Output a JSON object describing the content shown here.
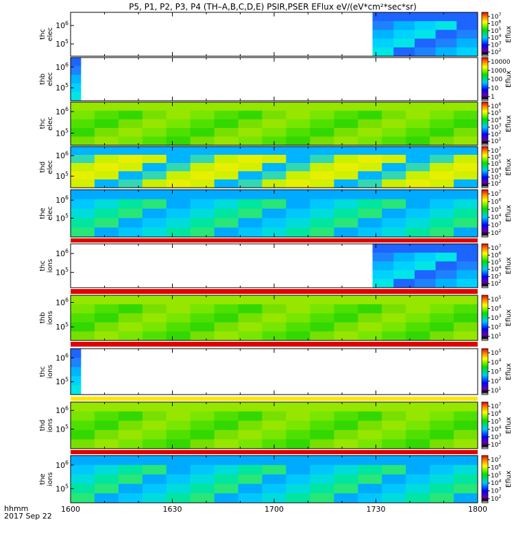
{
  "title": "P5, P1, P2, P3, P4 (TH–A,B,C,D,E) PSIR,PSER EFlux eV/(eV*cm²*sec*sr)",
  "x_axis": {
    "ticks": [
      "1600",
      "1630",
      "1700",
      "1730",
      "1800"
    ],
    "tick_minutes": [
      0,
      30,
      60,
      90,
      120
    ],
    "format_label": "hhmm",
    "date_label": "2017 Sep 22"
  },
  "colorbar_label": "Eflux",
  "chart_data": [
    {
      "type": "heatmap",
      "probe": "thc",
      "species": "elec",
      "ylabel_top": "thc",
      "ylabel_bottom": "elec",
      "y_ticks": [
        {
          "mant": "10",
          "exp": "6",
          "pos": 0.3
        },
        {
          "mant": "10",
          "exp": "5",
          "pos": 0.72
        }
      ],
      "colorbar_ticks": [
        {
          "mant": "10",
          "exp": "7"
        },
        {
          "mant": "10",
          "exp": "6"
        },
        {
          "mant": "10",
          "exp": "5"
        },
        {
          "mant": "10",
          "exp": "4"
        },
        {
          "mant": "10",
          "exp": "3"
        },
        {
          "mant": "10",
          "exp": "2"
        }
      ],
      "data_start_minute": 89,
      "data_end_minute": 120,
      "colormap": "blue-cyan"
    },
    {
      "type": "heatmap",
      "probe": "thb",
      "species": "elec",
      "ylabel_top": "thb",
      "ylabel_bottom": "elec",
      "y_ticks": [
        {
          "mant": "10",
          "exp": "6",
          "pos": 0.22
        },
        {
          "mant": "10",
          "exp": "5",
          "pos": 0.7
        }
      ],
      "colorbar_ticks": [
        {
          "mant": "10000",
          "exp": ""
        },
        {
          "mant": "1000",
          "exp": ""
        },
        {
          "mant": "100",
          "exp": ""
        },
        {
          "mant": "10",
          "exp": ""
        },
        {
          "mant": "1",
          "exp": ""
        }
      ],
      "data_start_minute": 0,
      "data_end_minute": 3,
      "colormap": "blue-cyan"
    },
    {
      "type": "heatmap",
      "probe": "thc",
      "species": "elec",
      "ylabel_top": "thc",
      "ylabel_bottom": "elec",
      "y_ticks": [
        {
          "mant": "10",
          "exp": "6",
          "pos": 0.22
        },
        {
          "mant": "10",
          "exp": "5",
          "pos": 0.72
        }
      ],
      "colorbar_ticks": [
        {
          "mant": "10",
          "exp": "6"
        },
        {
          "mant": "10",
          "exp": "5"
        },
        {
          "mant": "10",
          "exp": "4"
        },
        {
          "mant": "10",
          "exp": "3"
        },
        {
          "mant": "10",
          "exp": "2"
        },
        {
          "mant": "10",
          "exp": "1"
        }
      ],
      "data_start_minute": 0,
      "data_end_minute": 120,
      "colormap": "green"
    },
    {
      "type": "heatmap",
      "probe": "thd",
      "species": "elec",
      "ylabel_top": "thd",
      "ylabel_bottom": "elec",
      "y_ticks": [
        {
          "mant": "10",
          "exp": "6",
          "pos": 0.22
        },
        {
          "mant": "10",
          "exp": "5",
          "pos": 0.72
        }
      ],
      "colorbar_ticks": [
        {
          "mant": "10",
          "exp": "7"
        },
        {
          "mant": "10",
          "exp": "6"
        },
        {
          "mant": "10",
          "exp": "5"
        },
        {
          "mant": "10",
          "exp": "4"
        },
        {
          "mant": "10",
          "exp": "3"
        },
        {
          "mant": "10",
          "exp": "2"
        }
      ],
      "data_start_minute": 0,
      "data_end_minute": 120,
      "colormap": "yellow-green"
    },
    {
      "type": "heatmap",
      "probe": "the",
      "species": "elec",
      "ylabel_top": "the",
      "ylabel_bottom": "elec",
      "y_ticks": [
        {
          "mant": "10",
          "exp": "6",
          "pos": 0.22
        },
        {
          "mant": "10",
          "exp": "5",
          "pos": 0.6
        }
      ],
      "colorbar_ticks": [
        {
          "mant": "10",
          "exp": "7"
        },
        {
          "mant": "10",
          "exp": "6"
        },
        {
          "mant": "10",
          "exp": "5"
        },
        {
          "mant": "10",
          "exp": "4"
        },
        {
          "mant": "10",
          "exp": "3"
        },
        {
          "mant": "10",
          "exp": "2"
        }
      ],
      "data_start_minute": 0,
      "data_end_minute": 120,
      "colormap": "cyan-green"
    },
    {
      "type": "heatmap",
      "probe": "thc",
      "species": "ions",
      "ylabel_top": "thc",
      "ylabel_bottom": "ions",
      "y_ticks": [
        {
          "mant": "10",
          "exp": "6",
          "pos": 0.22
        },
        {
          "mant": "10",
          "exp": "5",
          "pos": 0.65
        }
      ],
      "colorbar_ticks": [
        {
          "mant": "10",
          "exp": "7"
        },
        {
          "mant": "10",
          "exp": "6"
        },
        {
          "mant": "10",
          "exp": "5"
        },
        {
          "mant": "10",
          "exp": "4"
        },
        {
          "mant": "10",
          "exp": "3"
        },
        {
          "mant": "10",
          "exp": "2"
        }
      ],
      "data_start_minute": 89,
      "data_end_minute": 120,
      "colormap": "blue-cyan"
    },
    {
      "type": "heatmap",
      "probe": "thb",
      "species": "ions",
      "ylabel_top": "thb",
      "ylabel_bottom": "ions",
      "y_ticks": [
        {
          "mant": "10",
          "exp": "6",
          "pos": 0.16
        },
        {
          "mant": "10",
          "exp": "5",
          "pos": 0.7
        }
      ],
      "colorbar_ticks": [
        {
          "mant": "10",
          "exp": "5"
        },
        {
          "mant": "10",
          "exp": "4"
        },
        {
          "mant": "10",
          "exp": "3"
        },
        {
          "mant": "10",
          "exp": "2"
        },
        {
          "mant": "10",
          "exp": "1"
        }
      ],
      "data_start_minute": 0,
      "data_end_minute": 120,
      "colormap": "green"
    },
    {
      "type": "heatmap",
      "probe": "thc",
      "species": "ions",
      "ylabel_top": "thc",
      "ylabel_bottom": "ions",
      "y_ticks": [
        {
          "mant": "10",
          "exp": "6",
          "pos": 0.2
        },
        {
          "mant": "10",
          "exp": "5",
          "pos": 0.72
        }
      ],
      "colorbar_ticks": [
        {
          "mant": "10",
          "exp": "5"
        },
        {
          "mant": "10",
          "exp": "4"
        },
        {
          "mant": "10",
          "exp": "3"
        },
        {
          "mant": "10",
          "exp": "2"
        },
        {
          "mant": "10",
          "exp": "1"
        }
      ],
      "data_start_minute": 0,
      "data_end_minute": 3,
      "colormap": "blue-cyan"
    },
    {
      "type": "heatmap",
      "probe": "thd",
      "species": "ions",
      "ylabel_top": "thd",
      "ylabel_bottom": "ions",
      "y_ticks": [
        {
          "mant": "10",
          "exp": "6",
          "pos": 0.18
        },
        {
          "mant": "10",
          "exp": "5",
          "pos": 0.58
        }
      ],
      "colorbar_ticks": [
        {
          "mant": "10",
          "exp": "7"
        },
        {
          "mant": "10",
          "exp": "6"
        },
        {
          "mant": "10",
          "exp": "5"
        },
        {
          "mant": "10",
          "exp": "4"
        },
        {
          "mant": "10",
          "exp": "3"
        },
        {
          "mant": "10",
          "exp": "2"
        }
      ],
      "data_start_minute": 0,
      "data_end_minute": 120,
      "colormap": "green"
    },
    {
      "type": "heatmap",
      "probe": "the",
      "species": "ions",
      "ylabel_top": "the",
      "ylabel_bottom": "ions",
      "y_ticks": [
        {
          "mant": "10",
          "exp": "6",
          "pos": 0.2
        },
        {
          "mant": "10",
          "exp": "5",
          "pos": 0.7
        }
      ],
      "colorbar_ticks": [
        {
          "mant": "10",
          "exp": "7"
        },
        {
          "mant": "10",
          "exp": "6"
        },
        {
          "mant": "10",
          "exp": "5"
        },
        {
          "mant": "10",
          "exp": "4"
        },
        {
          "mant": "10",
          "exp": "3"
        },
        {
          "mant": "10",
          "exp": "2"
        }
      ],
      "data_start_minute": 0,
      "data_end_minute": 120,
      "colormap": "cyan-green"
    }
  ]
}
